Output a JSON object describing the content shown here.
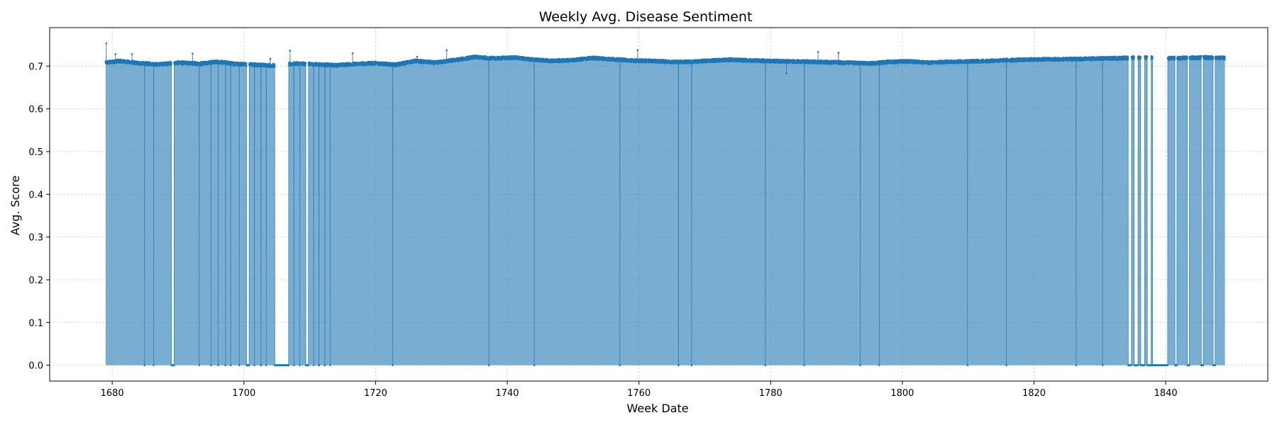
{
  "chart_data": {
    "type": "area",
    "title": "Weekly Avg. Disease Sentiment",
    "xlabel": "Week Date",
    "ylabel": "Avg. Score",
    "xlim": [
      1670.5,
      1855.5
    ],
    "ylim": [
      -0.037,
      0.79
    ],
    "xticks": [
      1680,
      1700,
      1720,
      1740,
      1760,
      1780,
      1800,
      1820,
      1840
    ],
    "yticks": [
      0.0,
      0.1,
      0.2,
      0.3,
      0.4,
      0.5,
      0.6,
      0.7
    ],
    "ytick_labels": [
      "0.0",
      "0.1",
      "0.2",
      "0.3",
      "0.4",
      "0.5",
      "0.6",
      "0.7"
    ],
    "grid": true,
    "data_range": [
      1679,
      1849
    ],
    "series": [
      {
        "color": "#1f77b4",
        "fill_color": "#1f77b4",
        "fill_alpha": 0.6,
        "baseline": 0.0,
        "profile_x": [
          1679,
          1681,
          1684,
          1687,
          1690,
          1693,
          1696,
          1699,
          1702,
          1705,
          1708,
          1711,
          1714,
          1717,
          1720,
          1723,
          1726,
          1729,
          1732,
          1735,
          1738,
          1741,
          1744,
          1747,
          1750,
          1753,
          1756,
          1759,
          1762,
          1765,
          1768,
          1771,
          1774,
          1777,
          1780,
          1783,
          1786,
          1789,
          1792,
          1795,
          1798,
          1801,
          1804,
          1807,
          1810,
          1813,
          1816,
          1819,
          1822,
          1825,
          1828,
          1831,
          1834,
          1837,
          1840,
          1843,
          1846,
          1849
        ],
        "profile_y": [
          0.708,
          0.712,
          0.707,
          0.704,
          0.708,
          0.706,
          0.71,
          0.705,
          0.703,
          0.701,
          0.706,
          0.704,
          0.702,
          0.705,
          0.707,
          0.703,
          0.712,
          0.708,
          0.714,
          0.721,
          0.718,
          0.72,
          0.715,
          0.712,
          0.714,
          0.719,
          0.716,
          0.713,
          0.712,
          0.71,
          0.71,
          0.713,
          0.715,
          0.713,
          0.712,
          0.711,
          0.71,
          0.709,
          0.708,
          0.706,
          0.71,
          0.711,
          0.708,
          0.71,
          0.711,
          0.712,
          0.714,
          0.715,
          0.716,
          0.716,
          0.717,
          0.718,
          0.719,
          0.72,
          0.718,
          0.719,
          0.72,
          0.719
        ],
        "gaps": [
          [
            1689,
            1689.4
          ],
          [
            1700.4,
            1700.8
          ],
          [
            1704.7,
            1706.8
          ],
          [
            1709.4,
            1709.8
          ],
          [
            1834.3,
            1834.8
          ],
          [
            1835.2,
            1835.8
          ],
          [
            1836.2,
            1836.8
          ],
          [
            1837.2,
            1837.8
          ],
          [
            1838.0,
            1840.3
          ],
          [
            1841.4,
            1841.7
          ],
          [
            1843.3,
            1843.6
          ],
          [
            1845.4,
            1845.7
          ],
          [
            1847.2,
            1847.5
          ]
        ],
        "spikes": [
          [
            1679.1,
            0.753
          ],
          [
            1680.5,
            0.728
          ],
          [
            1683.0,
            0.728
          ],
          [
            1692.2,
            0.729
          ],
          [
            1704.0,
            0.717
          ],
          [
            1707.0,
            0.736
          ],
          [
            1716.5,
            0.73
          ],
          [
            1726.3,
            0.722
          ],
          [
            1730.8,
            0.737
          ],
          [
            1759.8,
            0.749
          ],
          [
            1759.8,
            0.737
          ],
          [
            1787.2,
            0.733
          ],
          [
            1790.3,
            0.731
          ]
        ],
        "dips": [
          [
            1782.4,
            0.683
          ],
          [
            1693.5,
            0.701
          ],
          [
            1698.5,
            0.7
          ]
        ]
      }
    ]
  }
}
